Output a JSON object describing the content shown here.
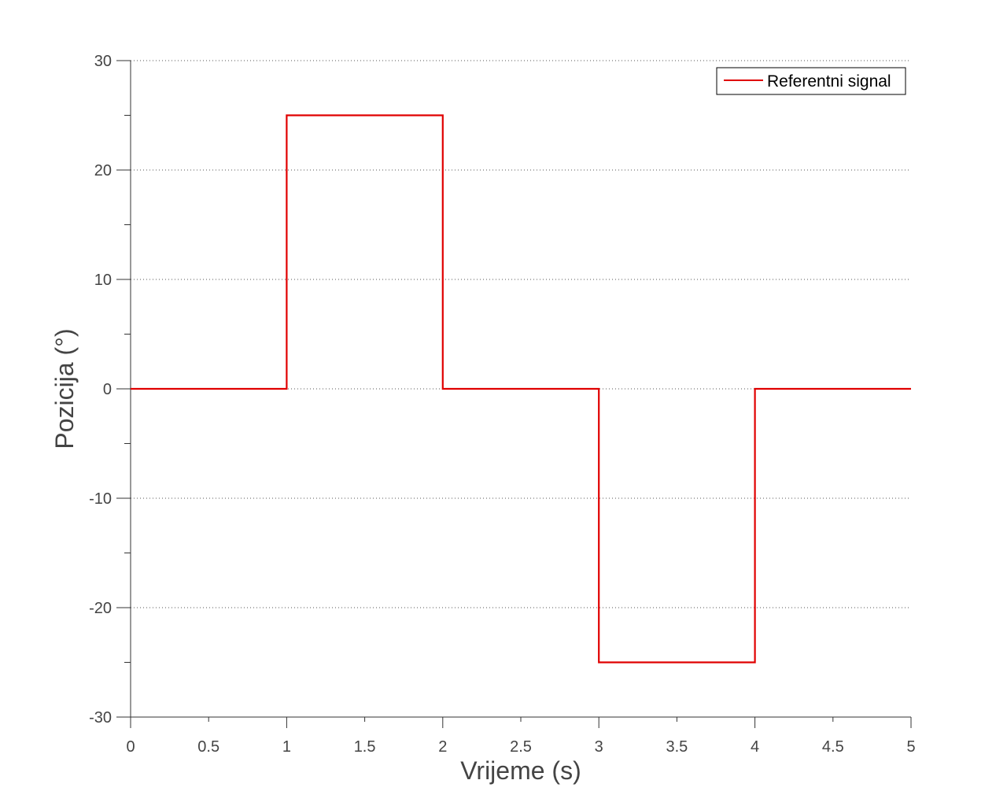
{
  "chart_data": {
    "type": "line",
    "title": "",
    "xlabel": "Vrijeme (s)",
    "ylabel": "Pozicija (°)",
    "xlim": [
      0,
      5
    ],
    "ylim": [
      -30,
      30
    ],
    "xticks": [
      0,
      0.5,
      1,
      1.5,
      2,
      2.5,
      3,
      3.5,
      4,
      4.5,
      5
    ],
    "xtick_labels": [
      "0",
      "0.5",
      "1",
      "1.5",
      "2",
      "2.5",
      "3",
      "3.5",
      "4",
      "4.5",
      "5"
    ],
    "yticks": [
      -30,
      -20,
      -10,
      0,
      10,
      20,
      30
    ],
    "ytick_labels": [
      "-30",
      "-20",
      "-10",
      "0",
      "10",
      "20",
      "30"
    ],
    "grid": "horizontal dotted",
    "legend_position": "top-right",
    "series": [
      {
        "name": "Referentni signal",
        "color": "#e00000",
        "x": [
          0,
          1,
          1,
          2,
          2,
          2,
          3,
          3,
          4,
          4,
          4,
          5
        ],
        "y": [
          0,
          0,
          25,
          25,
          12.5,
          0,
          0,
          -25,
          -25,
          -12.5,
          0,
          0
        ]
      }
    ]
  }
}
